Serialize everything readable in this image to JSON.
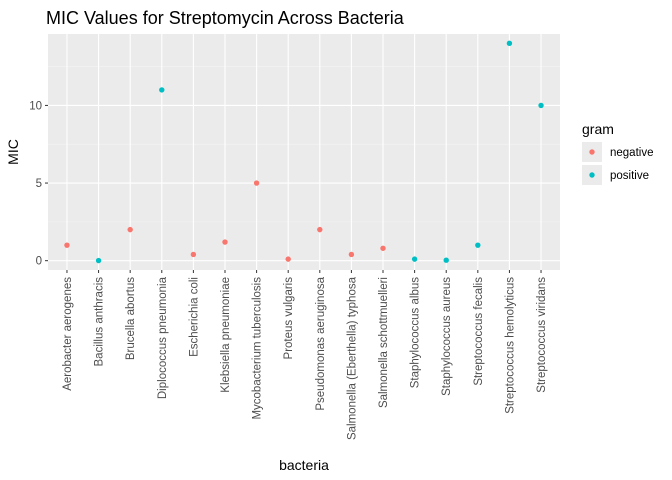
{
  "chart_data": {
    "type": "scatter",
    "title": "MIC Values for Streptomycin Across Bacteria",
    "xlabel": "bacteria",
    "ylabel": "MIC",
    "ylim": [
      -0.6,
      14.6
    ],
    "yticks": [
      0,
      5,
      10
    ],
    "grid": true,
    "legend": {
      "title": "gram",
      "placement": "right",
      "entries": [
        {
          "name": "negative",
          "color": "#F8766D"
        },
        {
          "name": "positive",
          "color": "#00BFC4"
        }
      ]
    },
    "categories": [
      "Aerobacter aerogenes",
      "Bacillus anthracis",
      "Brucella abortus",
      "Diplococcus pneumonia",
      "Escherichia coli",
      "Klebsiella pneumoniae",
      "Mycobacterium tuberculosis",
      "Proteus vulgaris",
      "Pseudomonas aeruginosa",
      "Salmonella (Eberthella) typhosa",
      "Salmonella schottmuelleri",
      "Staphylococcus albus",
      "Staphylococcus aureus",
      "Streptococcus fecalis",
      "Streptococcus hemolyticus",
      "Streptococcus viridans"
    ],
    "values": [
      1.0,
      0.01,
      2.0,
      11.0,
      0.4,
      1.2,
      5.0,
      0.1,
      2.0,
      0.4,
      0.8,
      0.1,
      0.03,
      1.0,
      14.0,
      10.0
    ],
    "groups": [
      "negative",
      "positive",
      "negative",
      "positive",
      "negative",
      "negative",
      "negative",
      "negative",
      "negative",
      "negative",
      "negative",
      "positive",
      "positive",
      "positive",
      "positive",
      "positive"
    ]
  },
  "colors": {
    "panel_background": "#EBEBEB",
    "grid_major": "#FFFFFF",
    "grid_minor": "#F5F5F5"
  }
}
